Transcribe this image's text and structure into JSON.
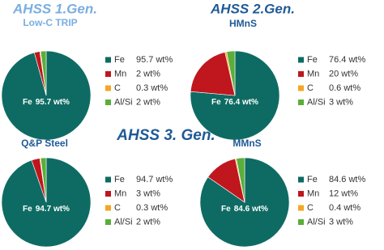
{
  "headings": [
    {
      "text": "AHSS 1.Gen.",
      "color": "#7aaee0"
    },
    {
      "text": "AHSS 2.Gen.",
      "color": "#1f5a96"
    },
    {
      "text": "AHSS 3. Gen.",
      "color": "#1f5a96"
    }
  ],
  "chart_data": [
    {
      "type": "pie",
      "title": "Low-C TRIP",
      "title_color": "#7aaee0",
      "categories": [
        "Fe",
        "Mn",
        "C",
        "Al/Si"
      ],
      "values": [
        95.7,
        2,
        0.3,
        2
      ],
      "value_labels": [
        "95.7 wt%",
        "2 wt%",
        "0.3 wt%",
        "2 wt%"
      ],
      "colors": [
        "#0e6b63",
        "#c0161e",
        "#f5a623",
        "#5aae3a"
      ]
    },
    {
      "type": "pie",
      "title": "HMnS",
      "title_color": "#1f5a96",
      "categories": [
        "Fe",
        "Mn",
        "C",
        "Al/Si"
      ],
      "values": [
        76.4,
        20,
        0.6,
        3
      ],
      "value_labels": [
        "76.4 wt%",
        "20 wt%",
        "0.6 wt%",
        "3 wt%"
      ],
      "colors": [
        "#0e6b63",
        "#c0161e",
        "#f5a623",
        "#5aae3a"
      ]
    },
    {
      "type": "pie",
      "title": "Q&P Steel",
      "title_color": "#1f5a96",
      "categories": [
        "Fe",
        "Mn",
        "C",
        "Al/Si"
      ],
      "values": [
        94.7,
        3,
        0.3,
        2
      ],
      "value_labels": [
        "94.7 wt%",
        "3 wt%",
        "0.3 wt%",
        "2 wt%"
      ],
      "colors": [
        "#0e6b63",
        "#c0161e",
        "#f5a623",
        "#5aae3a"
      ]
    },
    {
      "type": "pie",
      "title": "MMnS",
      "title_color": "#1f5a96",
      "categories": [
        "Fe",
        "Mn",
        "C",
        "Al/Si"
      ],
      "values": [
        84.6,
        12,
        0.4,
        3
      ],
      "value_labels": [
        "84.6 wt%",
        "12 wt%",
        "0.4 wt%",
        "3 wt%"
      ],
      "colors": [
        "#0e6b63",
        "#c0161e",
        "#f5a623",
        "#5aae3a"
      ]
    }
  ]
}
